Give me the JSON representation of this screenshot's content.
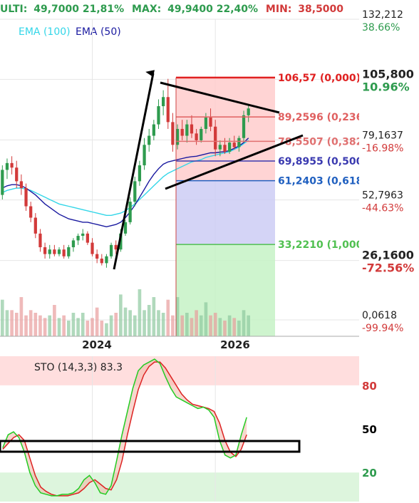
{
  "header": {
    "prefix": "ULTI:",
    "last_value": "49,7000",
    "last_change": "21,81%",
    "max_label": "MAX:",
    "max_value": "49,9400",
    "max_change": "22,40%",
    "min_label": "MIN:",
    "min_value": "38,5000"
  },
  "legend": {
    "ema100": "EMA (100)",
    "ema50": "EMA (50)"
  },
  "colors": {
    "up": "#2e9b4e",
    "down": "#d23a3a",
    "ema100": "#33d6e8",
    "ema50": "#1a1aa0",
    "fib_zone_top": "#ffcccc",
    "fib_zone_mid": "#ccccf5",
    "fib_zone_low": "#c6f2c6",
    "sto_k": "#22cc22",
    "sto_d": "#dd2222"
  },
  "price_axis": {
    "levels": [
      {
        "value": 132.212,
        "label": "132,212",
        "pct": "38.66%",
        "pct_color": "#2e9b4e"
      },
      {
        "value": 105.8,
        "label": "105,800",
        "pct": "10.96%",
        "pct_color": "#2e9b4e",
        "bold": true
      },
      {
        "value": 79.1637,
        "label": "79,1637",
        "pct": "-16.98%",
        "pct_color": "#d23a3a"
      },
      {
        "value": 52.7963,
        "label": "52,7963",
        "pct": "-44.63%",
        "pct_color": "#d23a3a"
      },
      {
        "value": 26.16,
        "label": "26,1600",
        "pct": "-72.56%",
        "pct_color": "#d23a3a",
        "bold": true
      },
      {
        "value": 0.0618,
        "label": "0,0618",
        "pct": "-99.94%",
        "pct_color": "#d23a3a"
      }
    ],
    "scale_top": 132.212,
    "scale_bottom": 0.0618
  },
  "fibonacci": [
    {
      "value": 106.57,
      "label": "106,57 (0,000)",
      "color": "#e02020"
    },
    {
      "value": 89.2596,
      "label": "89,2596 (0,236",
      "color": "#e06060"
    },
    {
      "value": 78.5507,
      "label": "78,5507 (0,382",
      "color": "#e07070"
    },
    {
      "value": 69.8955,
      "label": "69,8955 (0,500",
      "color": "#3a3ab0"
    },
    {
      "value": 61.2403,
      "label": "61,2403 (0,618",
      "color": "#2060c0"
    },
    {
      "value": 33.221,
      "label": "33,2210 (1,000",
      "color": "#50c050"
    }
  ],
  "time_axis": {
    "labels": [
      "2024",
      "2026"
    ]
  },
  "oscillator": {
    "title": "STO (14,3,3) 83.3",
    "levels": [
      {
        "value": 80,
        "label": "80",
        "color": "#d23a3a"
      },
      {
        "value": 50,
        "label": "50",
        "color": "#000000"
      },
      {
        "value": 20,
        "label": "20",
        "color": "#2e9b4e"
      }
    ]
  },
  "chart_data": {
    "type": "candlestick",
    "ohlc": [
      [
        55,
        68,
        53,
        66
      ],
      [
        66,
        71,
        62,
        69
      ],
      [
        69,
        72,
        64,
        67
      ],
      [
        67,
        70,
        58,
        61
      ],
      [
        61,
        64,
        55,
        58
      ],
      [
        58,
        60,
        48,
        50
      ],
      [
        50,
        52,
        43,
        45
      ],
      [
        45,
        47,
        36,
        38
      ],
      [
        38,
        40,
        30,
        32
      ],
      [
        32,
        34,
        27,
        29
      ],
      [
        29,
        33,
        27,
        31
      ],
      [
        31,
        33,
        28,
        29
      ],
      [
        29,
        32,
        28,
        31
      ],
      [
        31,
        33,
        27,
        28
      ],
      [
        28,
        33,
        27,
        32
      ],
      [
        32,
        36,
        30,
        35
      ],
      [
        35,
        38,
        33,
        37
      ],
      [
        37,
        40,
        35,
        38
      ],
      [
        38,
        39,
        33,
        34
      ],
      [
        34,
        36,
        28,
        29
      ],
      [
        29,
        31,
        25,
        27
      ],
      [
        27,
        29,
        24,
        25
      ],
      [
        25,
        29,
        23,
        28
      ],
      [
        28,
        34,
        27,
        33
      ],
      [
        33,
        35,
        29,
        31
      ],
      [
        31,
        40,
        30,
        38
      ],
      [
        38,
        44,
        37,
        43
      ],
      [
        43,
        54,
        42,
        52
      ],
      [
        52,
        63,
        50,
        61
      ],
      [
        61,
        70,
        59,
        68
      ],
      [
        68,
        80,
        66,
        77
      ],
      [
        77,
        84,
        74,
        81
      ],
      [
        81,
        88,
        79,
        86
      ],
      [
        86,
        97,
        84,
        94
      ],
      [
        94,
        101,
        90,
        98
      ],
      [
        98,
        106,
        84,
        87
      ],
      [
        87,
        91,
        74,
        77
      ],
      [
        77,
        86,
        75,
        84
      ],
      [
        84,
        88,
        79,
        81
      ],
      [
        81,
        88,
        78,
        86
      ],
      [
        86,
        90,
        80,
        82
      ],
      [
        82,
        84,
        77,
        79
      ],
      [
        79,
        85,
        78,
        84
      ],
      [
        84,
        91,
        82,
        89
      ],
      [
        89,
        93,
        83,
        85
      ],
      [
        85,
        88,
        72,
        75
      ],
      [
        75,
        79,
        72,
        77
      ],
      [
        77,
        80,
        73,
        74
      ],
      [
        74,
        80,
        73,
        78
      ],
      [
        78,
        81,
        75,
        76
      ],
      [
        76,
        81,
        74,
        80
      ],
      [
        80,
        92,
        78,
        90
      ],
      [
        90,
        95,
        87,
        93
      ]
    ],
    "ema100": [
      56,
      57,
      57.5,
      58,
      58,
      57.5,
      57,
      56,
      55,
      54,
      53,
      52,
      51,
      50.5,
      50,
      49.5,
      49,
      48.5,
      48,
      47.5,
      47,
      46.5,
      46,
      46,
      46.5,
      47,
      48,
      49.5,
      51,
      53,
      55,
      57,
      59,
      61,
      63,
      64.5,
      65.5,
      66.5,
      67.5,
      68.5,
      69.5,
      70,
      70.5,
      71.5,
      72,
      72.5,
      73,
      73.5,
      74,
      75,
      76,
      77.5,
      79
    ],
    "ema50": [
      58,
      59,
      59.5,
      59.5,
      59,
      58,
      56.5,
      55,
      53,
      51,
      49.5,
      48,
      46.5,
      45.5,
      44.5,
      44,
      43.5,
      43,
      43,
      42.5,
      42,
      41.5,
      41,
      41.5,
      42,
      43,
      45,
      47.5,
      50.5,
      54,
      57.5,
      61,
      64,
      66.5,
      68.5,
      69.5,
      70,
      70.5,
      71,
      71.5,
      71.8,
      72,
      72.5,
      73,
      73.5,
      73.5,
      73.8,
      74,
      74.5,
      75.5,
      76.5,
      78,
      80
    ],
    "volume": [
      14,
      10,
      10,
      9,
      15,
      8,
      10,
      9,
      8,
      7,
      8,
      12,
      7,
      8,
      6,
      9,
      7,
      9,
      6,
      7,
      11,
      6,
      5,
      8,
      9,
      16,
      11,
      10,
      8,
      18,
      10,
      12,
      15,
      10,
      9,
      14,
      8,
      15,
      8,
      9,
      7,
      10,
      8,
      13,
      8,
      9,
      7,
      6,
      8,
      7,
      6,
      10,
      8
    ],
    "stoch_k": [
      37,
      46,
      48,
      44,
      34,
      20,
      11,
      6,
      5,
      4,
      4,
      5,
      5,
      6,
      9,
      15,
      18,
      13,
      6,
      5,
      11,
      28,
      46,
      62,
      78,
      90,
      94,
      96,
      98,
      95,
      86,
      78,
      72,
      70,
      68,
      66,
      64,
      65,
      63,
      58,
      42,
      32,
      30,
      32,
      46,
      58
    ],
    "stoch_d": [
      36,
      40,
      44,
      46,
      42,
      30,
      18,
      10,
      7,
      5,
      4,
      4,
      4,
      5,
      6,
      9,
      13,
      15,
      12,
      9,
      8,
      15,
      28,
      46,
      62,
      77,
      87,
      93,
      96,
      96,
      92,
      86,
      80,
      74,
      70,
      67,
      66,
      65,
      64,
      62,
      54,
      42,
      34,
      31,
      36,
      46
    ]
  }
}
